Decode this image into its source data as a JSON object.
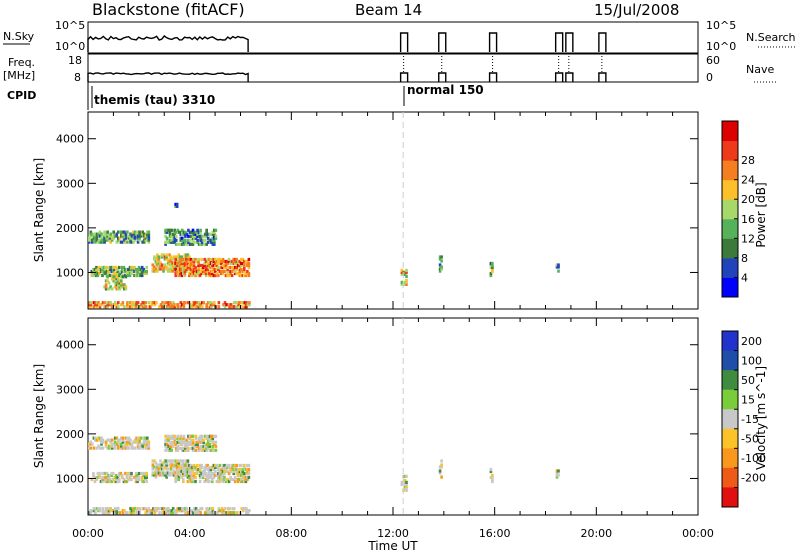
{
  "header": {
    "station": "Blackstone (fitACF)",
    "beam": "Beam 14",
    "date": "15/Jul/2008"
  },
  "left_labels": {
    "nsky": "N.Sky",
    "nsky_ticks": [
      "10^5",
      "10^0"
    ],
    "freq": "Freq.",
    "freq_unit": "[MHz]",
    "freq_ticks": [
      "18",
      "8"
    ],
    "cpid": "CPID"
  },
  "right_labels": {
    "nsearch": "N.Search",
    "nsearch_ticks": [
      "10^5",
      "10^0"
    ],
    "nave": "Nave",
    "nave_ticks": [
      "60",
      "0"
    ]
  },
  "cpid_annotations": [
    {
      "text": "themis (tau) 3310",
      "time_hours": 0.0
    },
    {
      "text": "normal 150",
      "time_hours": 12.3
    }
  ],
  "colors": {
    "power_scale": [
      "#0000ff",
      "#2244bb",
      "#3c7a3c",
      "#56b25a",
      "#a6d96a",
      "#fdbf2a",
      "#f57f20",
      "#ee3a1a",
      "#dd0000"
    ],
    "velocity_scale": [
      "#2233cc",
      "#1f4ea8",
      "#3f8b3f",
      "#7acc3a",
      "#c8c8c8",
      "#fcc22a",
      "#f8981c",
      "#f05a18",
      "#e01010"
    ]
  },
  "chart_data": [
    {
      "type": "heatmap",
      "name": "power",
      "xlabel": "",
      "ylabel": "Slant Range [km]",
      "x_tick_labels": [
        "00:00",
        "04:00",
        "08:00",
        "12:00",
        "16:00",
        "20:00",
        "00:00"
      ],
      "y_tick_labels": [
        "1000",
        "2000",
        "3000",
        "4000"
      ],
      "xlim": [
        0,
        24
      ],
      "ylim": [
        180,
        4600
      ],
      "colorbar": {
        "label": "Power [dB]",
        "ticks": [
          "4",
          "8",
          "12",
          "16",
          "20",
          "24",
          "28"
        ],
        "range": [
          0,
          30
        ]
      },
      "scatter_regions_time_h_range_km_level": [
        [
          0.0,
          2.4,
          1650,
          1900,
          0.35
        ],
        [
          0.1,
          2.3,
          900,
          1100,
          0.4
        ],
        [
          0.6,
          1.5,
          600,
          900,
          0.5
        ],
        [
          2.5,
          4.0,
          1000,
          1400,
          0.6
        ],
        [
          3.4,
          6.3,
          900,
          1300,
          0.75
        ],
        [
          0.0,
          6.3,
          200,
          320,
          0.7
        ],
        [
          3.0,
          5.0,
          1600,
          1950,
          0.3
        ],
        [
          3.4,
          3.5,
          2450,
          2620,
          0.2
        ],
        [
          12.3,
          12.5,
          700,
          1050,
          0.6
        ],
        [
          13.8,
          13.9,
          1000,
          1400,
          0.3
        ],
        [
          15.8,
          15.9,
          900,
          1200,
          0.35
        ],
        [
          18.4,
          18.5,
          1000,
          1150,
          0.25
        ]
      ]
    },
    {
      "type": "heatmap",
      "name": "velocity",
      "xlabel": "Time UT",
      "ylabel": "Slant Range [km]",
      "x_tick_labels": [
        "00:00",
        "04:00",
        "08:00",
        "12:00",
        "16:00",
        "20:00",
        "00:00"
      ],
      "y_tick_labels": [
        "1000",
        "2000",
        "3000",
        "4000"
      ],
      "xlim": [
        0,
        24
      ],
      "ylim": [
        180,
        4600
      ],
      "colorbar": {
        "label": "Velocity [m s^-1]",
        "ticks": [
          "200",
          "100",
          "50",
          "15",
          "-15",
          "-50",
          "-100",
          "-200"
        ],
        "range": [
          -250,
          250
        ]
      },
      "scatter_regions_time_h_range_km_level": [
        [
          0.0,
          2.4,
          1650,
          1900,
          0.5
        ],
        [
          0.1,
          2.3,
          900,
          1100,
          0.5
        ],
        [
          2.5,
          4.0,
          1000,
          1400,
          0.55
        ],
        [
          3.4,
          6.3,
          900,
          1300,
          0.5
        ],
        [
          0.0,
          6.3,
          200,
          320,
          0.3
        ],
        [
          3.0,
          5.0,
          1600,
          1950,
          0.4
        ],
        [
          12.3,
          12.5,
          700,
          1050,
          0.5
        ],
        [
          13.8,
          13.9,
          1000,
          1400,
          0.5
        ],
        [
          15.8,
          15.9,
          900,
          1200,
          0.5
        ],
        [
          18.4,
          18.5,
          1000,
          1150,
          0.3
        ]
      ]
    }
  ]
}
